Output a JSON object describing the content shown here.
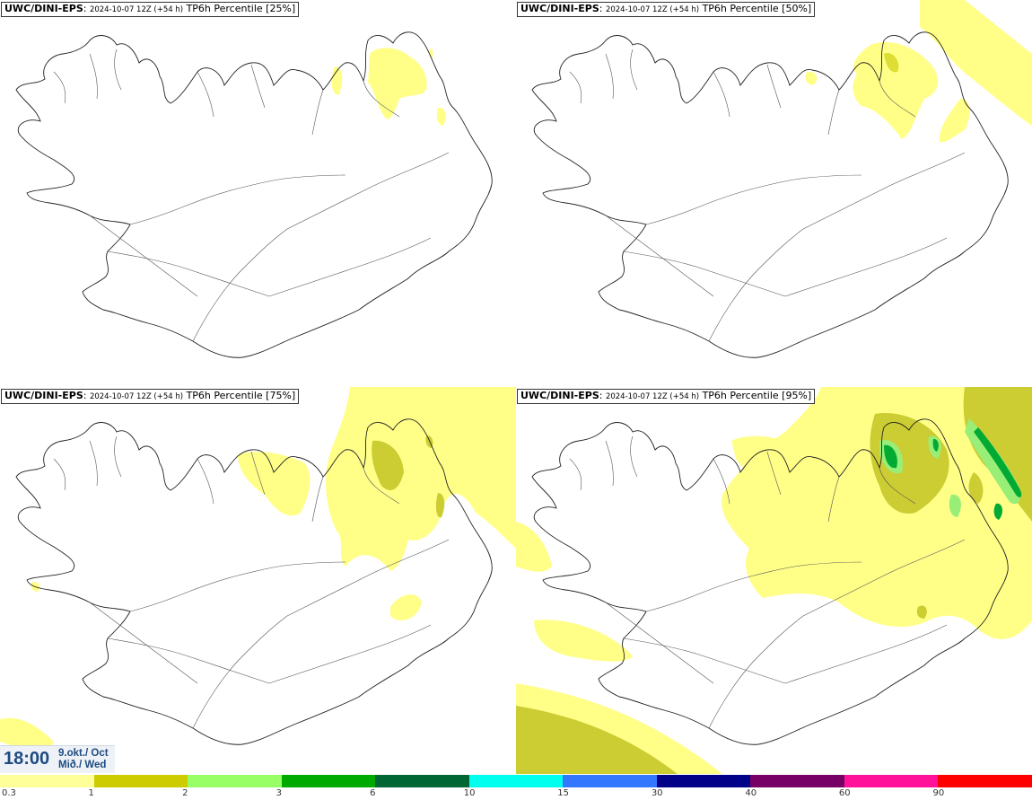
{
  "panels": [
    {
      "source": "UWC/DINI-EPS",
      "run": "2024-10-07 12Z (+54 h)",
      "label": "TP6h Percentile [25%]"
    },
    {
      "source": "UWC/DINI-EPS",
      "run": "2024-10-07 12Z (+54 h)",
      "label": "TP6h Percentile [50%]"
    },
    {
      "source": "UWC/DINI-EPS",
      "run": "2024-10-07 12Z (+54 h)",
      "label": "TP6h Percentile [75%]"
    },
    {
      "source": "UWC/DINI-EPS",
      "run": "2024-10-07 12Z (+54 h)",
      "label": "TP6h Percentile [95%]"
    }
  ],
  "valid_time": {
    "time": "18:00",
    "date_line1": "9.okt./ Oct",
    "date_line2": "Mið./ Wed"
  },
  "legend": {
    "colors": [
      "#ffff99",
      "#cccc00",
      "#99ff66",
      "#00aa00",
      "#006633",
      "#00ffee",
      "#3377ff",
      "#000088",
      "#770066",
      "#ff1199",
      "#ff0000"
    ],
    "ticks": [
      "0.3",
      "1",
      "2",
      "3",
      "6",
      "10",
      "15",
      "30",
      "40",
      "60",
      "90"
    ]
  }
}
